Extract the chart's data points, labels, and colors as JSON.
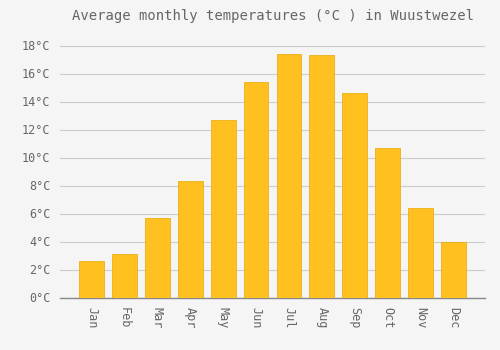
{
  "title": "Average monthly temperatures (°C ) in Wuustwezel",
  "months": [
    "Jan",
    "Feb",
    "Mar",
    "Apr",
    "May",
    "Jun",
    "Jul",
    "Aug",
    "Sep",
    "Oct",
    "Nov",
    "Dec"
  ],
  "values": [
    2.6,
    3.1,
    5.7,
    8.3,
    12.7,
    15.4,
    17.4,
    17.3,
    14.6,
    10.7,
    6.4,
    4.0
  ],
  "bar_color": "#FFC020",
  "bar_edge_color": "#E8A800",
  "background_color": "#F5F5F5",
  "grid_color": "#CCCCCC",
  "text_color": "#666666",
  "ylim": [
    0,
    19
  ],
  "yticks": [
    0,
    2,
    4,
    6,
    8,
    10,
    12,
    14,
    16,
    18
  ],
  "title_fontsize": 10,
  "tick_fontsize": 8.5,
  "bar_width": 0.75
}
